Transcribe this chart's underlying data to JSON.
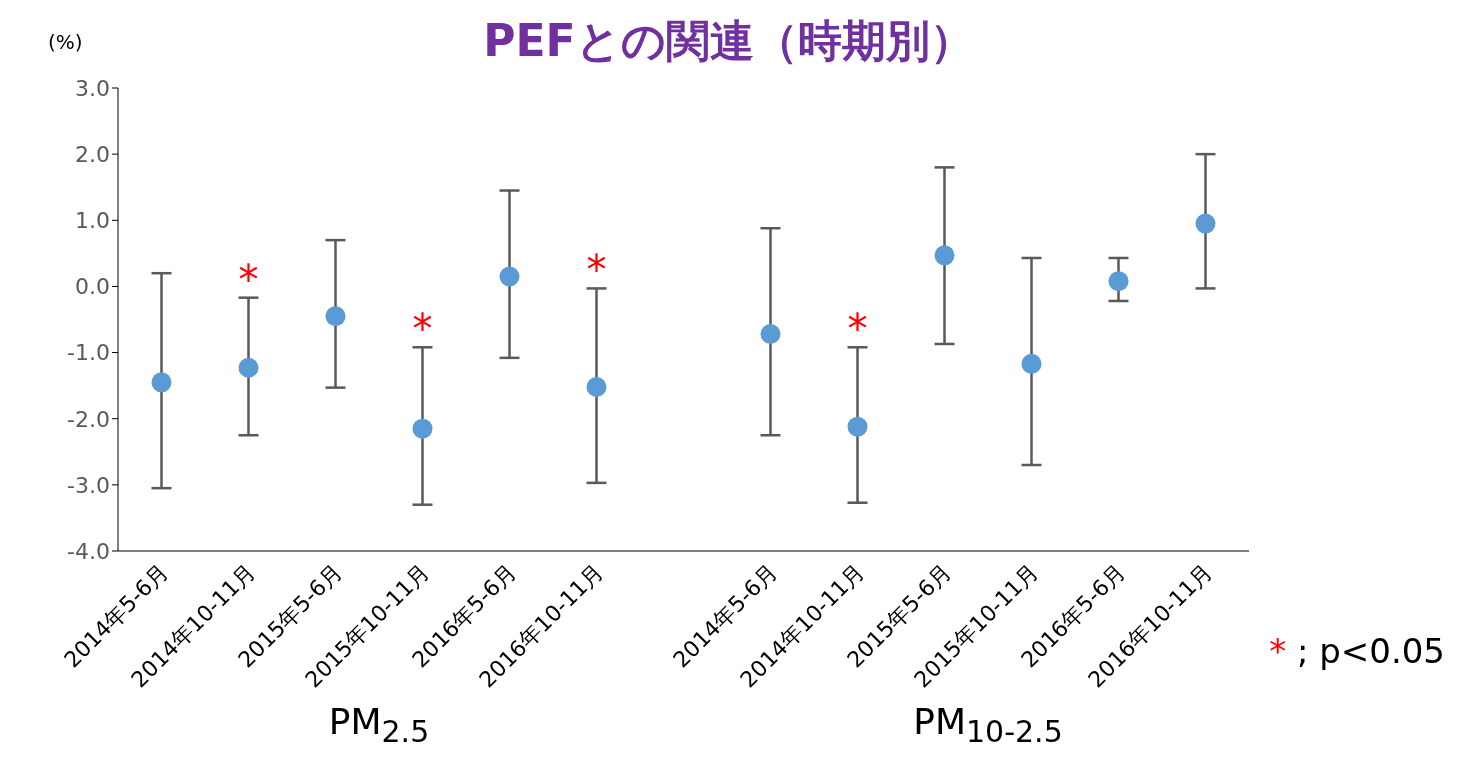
{
  "chart_data": {
    "type": "scatter",
    "title": "PEFとの関連（時期別）",
    "ylabel": "(%)",
    "categories": [
      "2014年5-6月",
      "2014年10-11月",
      "2015年5-6月",
      "2015年10-11月",
      "2016年5-6月",
      "2016年10-11月",
      null,
      "2014年5-6月",
      "2014年10-11月",
      "2015年5-6月",
      "2015年10-11月",
      "2016年5-6月",
      "2016年10-11月"
    ],
    "series": [
      {
        "color": "#5b9bd5",
        "values": [
          -1.45,
          -1.23,
          -0.45,
          -2.15,
          0.15,
          -1.52,
          null,
          -0.72,
          -2.12,
          0.47,
          -1.17,
          0.08,
          0.95
        ],
        "value_labels": [
          null,
          "*",
          null,
          "*",
          null,
          "*",
          null,
          null,
          "*",
          null,
          null,
          null,
          null
        ],
        "errors": [
          [
            -3.05,
            0.2
          ],
          [
            -2.25,
            -0.17
          ],
          [
            -1.53,
            0.7
          ],
          [
            -3.3,
            -0.92
          ],
          [
            -1.08,
            1.45
          ],
          [
            -2.97,
            -0.03
          ],
          null,
          [
            -2.25,
            0.88
          ],
          [
            -3.27,
            -0.92
          ],
          [
            -0.87,
            1.8
          ],
          [
            -2.7,
            0.43
          ],
          [
            -0.22,
            0.43
          ],
          [
            -0.03,
            2.0
          ]
        ]
      }
    ],
    "ylim": [
      -4,
      3
    ],
    "yticks": [
      {
        "value": -4,
        "label": "-4.0"
      },
      {
        "value": -3,
        "label": "-3.0"
      },
      {
        "value": -2,
        "label": "-2.0"
      },
      {
        "value": -1,
        "label": "-1.0"
      },
      {
        "value": 0,
        "label": "0.0"
      },
      {
        "value": 1,
        "label": "1.0"
      },
      {
        "value": 2,
        "label": "2.0"
      },
      {
        "value": 3,
        "label": "3.0"
      }
    ],
    "grid": false,
    "marker": "circle",
    "annotations": [
      "PM$_{2.5}$",
      "PM$_{10-2.5}$",
      "* ; p<0.05"
    ]
  }
}
